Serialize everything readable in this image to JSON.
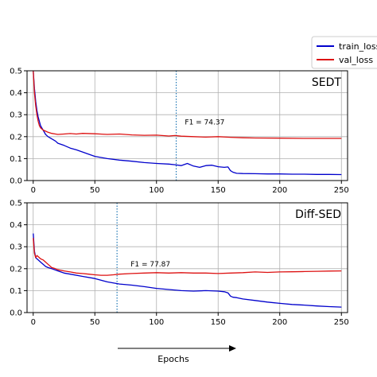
{
  "legend": {
    "placement": "top-right (outside plot)",
    "entries": [
      {
        "label": "train_loss",
        "color": "#0000cc"
      },
      {
        "label": "val_loss",
        "color": "#dd1111"
      }
    ]
  },
  "xaxis_label": "Epochs",
  "chart_data": [
    {
      "type": "line",
      "panel_label": "SEDT",
      "xlim": [
        -5,
        255
      ],
      "ylim": [
        0,
        0.5
      ],
      "xticks": [
        "0",
        "50",
        "100",
        "150",
        "200",
        "250"
      ],
      "yticks": [
        "0.0",
        "0.1",
        "0.2",
        "0.3",
        "0.4",
        "0.5"
      ],
      "grid": true,
      "annotation": {
        "text": "F1 = 74.37",
        "x": 123,
        "y": 0.255
      },
      "vline": {
        "x": 116,
        "style": "dotted",
        "color": "#1f77b4"
      },
      "series": [
        {
          "name": "train_loss",
          "color": "#0000cc",
          "x": [
            0,
            1,
            2,
            3,
            4,
            5,
            6,
            7,
            8,
            10,
            12,
            15,
            18,
            20,
            25,
            30,
            35,
            40,
            45,
            50,
            55,
            60,
            70,
            80,
            90,
            100,
            110,
            115,
            120,
            125,
            130,
            135,
            140,
            145,
            150,
            155,
            158,
            160,
            162,
            165,
            170,
            180,
            190,
            200,
            210,
            220,
            230,
            240,
            250
          ],
          "y": [
            0.5,
            0.42,
            0.36,
            0.32,
            0.29,
            0.27,
            0.25,
            0.24,
            0.23,
            0.21,
            0.2,
            0.19,
            0.18,
            0.17,
            0.16,
            0.148,
            0.14,
            0.13,
            0.12,
            0.11,
            0.105,
            0.1,
            0.093,
            0.088,
            0.082,
            0.078,
            0.075,
            0.072,
            0.068,
            0.078,
            0.066,
            0.06,
            0.068,
            0.07,
            0.063,
            0.06,
            0.062,
            0.045,
            0.038,
            0.033,
            0.032,
            0.031,
            0.03,
            0.03,
            0.029,
            0.029,
            0.028,
            0.028,
            0.027
          ]
        },
        {
          "name": "val_loss",
          "color": "#dd1111",
          "x": [
            0,
            1,
            2,
            3,
            4,
            5,
            6,
            8,
            10,
            12,
            15,
            18,
            20,
            25,
            30,
            35,
            40,
            50,
            60,
            70,
            80,
            90,
            100,
            110,
            115,
            120,
            130,
            140,
            150,
            160,
            170,
            180,
            200,
            220,
            240,
            250
          ],
          "y": [
            0.5,
            0.4,
            0.34,
            0.3,
            0.27,
            0.25,
            0.24,
            0.23,
            0.225,
            0.22,
            0.215,
            0.212,
            0.21,
            0.212,
            0.214,
            0.212,
            0.215,
            0.213,
            0.21,
            0.212,
            0.208,
            0.206,
            0.207,
            0.203,
            0.205,
            0.202,
            0.2,
            0.198,
            0.2,
            0.197,
            0.195,
            0.194,
            0.193,
            0.192,
            0.192,
            0.192
          ]
        }
      ]
    },
    {
      "type": "line",
      "panel_label": "Diff-SED",
      "xlim": [
        -5,
        255
      ],
      "ylim": [
        0,
        0.5
      ],
      "xticks": [
        "0",
        "50",
        "100",
        "150",
        "200",
        "250"
      ],
      "yticks": [
        "0.0",
        "0.1",
        "0.2",
        "0.3",
        "0.4",
        "0.5"
      ],
      "grid": true,
      "annotation": {
        "text": "F1 = 77.87",
        "x": 79,
        "y": 0.21
      },
      "vline": {
        "x": 68,
        "style": "dotted",
        "color": "#1f77b4"
      },
      "series": [
        {
          "name": "train_loss",
          "color": "#0000cc",
          "x": [
            0,
            1,
            2,
            3,
            4,
            5,
            6,
            8,
            10,
            12,
            15,
            20,
            25,
            30,
            40,
            50,
            60,
            70,
            80,
            90,
            100,
            110,
            120,
            130,
            140,
            150,
            155,
            158,
            160,
            162,
            165,
            170,
            180,
            190,
            200,
            210,
            220,
            230,
            240,
            250
          ],
          "y": [
            0.36,
            0.28,
            0.25,
            0.245,
            0.24,
            0.235,
            0.23,
            0.22,
            0.21,
            0.205,
            0.2,
            0.19,
            0.18,
            0.175,
            0.165,
            0.155,
            0.14,
            0.13,
            0.125,
            0.118,
            0.11,
            0.105,
            0.1,
            0.098,
            0.1,
            0.098,
            0.095,
            0.09,
            0.075,
            0.07,
            0.068,
            0.062,
            0.055,
            0.048,
            0.042,
            0.037,
            0.034,
            0.03,
            0.027,
            0.025
          ]
        },
        {
          "name": "val_loss",
          "color": "#dd1111",
          "x": [
            0,
            1,
            2,
            3,
            4,
            5,
            6,
            8,
            10,
            12,
            15,
            18,
            20,
            25,
            30,
            35,
            40,
            45,
            50,
            55,
            60,
            65,
            70,
            80,
            90,
            100,
            110,
            120,
            130,
            140,
            150,
            160,
            170,
            180,
            190,
            200,
            210,
            220,
            230,
            240,
            250
          ],
          "y": [
            0.34,
            0.27,
            0.25,
            0.26,
            0.255,
            0.25,
            0.245,
            0.24,
            0.23,
            0.22,
            0.205,
            0.2,
            0.195,
            0.19,
            0.185,
            0.18,
            0.178,
            0.175,
            0.172,
            0.17,
            0.17,
            0.172,
            0.175,
            0.178,
            0.18,
            0.182,
            0.18,
            0.182,
            0.18,
            0.18,
            0.178,
            0.18,
            0.182,
            0.185,
            0.183,
            0.185,
            0.186,
            0.187,
            0.188,
            0.189,
            0.19
          ]
        }
      ]
    }
  ]
}
